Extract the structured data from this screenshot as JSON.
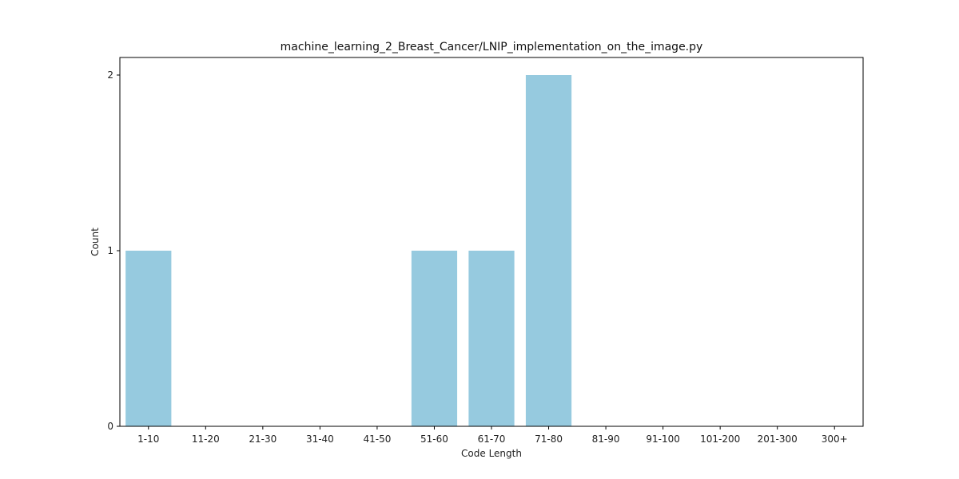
{
  "chart_data": {
    "type": "bar",
    "title": "machine_learning_2_Breast_Cancer/LNIP_implementation_on_the_image.py",
    "xlabel": "Code Length",
    "ylabel": "Count",
    "categories": [
      "1-10",
      "11-20",
      "21-30",
      "31-40",
      "41-50",
      "51-60",
      "61-70",
      "71-80",
      "81-90",
      "91-100",
      "101-200",
      "201-300",
      "300+"
    ],
    "values": [
      1,
      0,
      0,
      0,
      0,
      1,
      1,
      2,
      0,
      0,
      0,
      0,
      0
    ],
    "ylim": [
      0,
      2.1
    ],
    "yticks": [
      0,
      1,
      2
    ],
    "grid": false,
    "bar_color": "#96cadf"
  }
}
